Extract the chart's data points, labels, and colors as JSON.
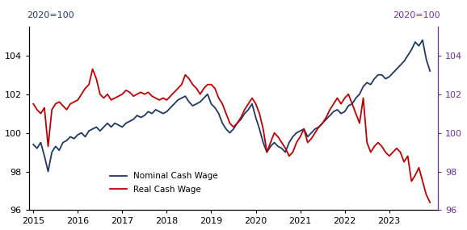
{
  "title_left": "2020=100",
  "title_right": "2020=100",
  "title_left_color": "#1f3864",
  "title_right_color": "#7030a0",
  "right_axis_color": "#7030a0",
  "ylim": [
    96,
    105.5
  ],
  "yticks": [
    96,
    98,
    100,
    102,
    104
  ],
  "xlabel_years": [
    2015,
    2016,
    2017,
    2018,
    2019,
    2020,
    2021,
    2022,
    2023
  ],
  "xlim": [
    2014.9,
    2024.1
  ],
  "nominal_color": "#1f3864",
  "real_color": "#c00000",
  "legend_nominal": "Nominal Cash Wage",
  "legend_real": "Real Cash Wage",
  "nominal_x": [
    2015.0,
    2015.083,
    2015.167,
    2015.25,
    2015.333,
    2015.417,
    2015.5,
    2015.583,
    2015.667,
    2015.75,
    2015.833,
    2015.917,
    2016.0,
    2016.083,
    2016.167,
    2016.25,
    2016.333,
    2016.417,
    2016.5,
    2016.583,
    2016.667,
    2016.75,
    2016.833,
    2016.917,
    2017.0,
    2017.083,
    2017.167,
    2017.25,
    2017.333,
    2017.417,
    2017.5,
    2017.583,
    2017.667,
    2017.75,
    2017.833,
    2017.917,
    2018.0,
    2018.083,
    2018.167,
    2018.25,
    2018.333,
    2018.417,
    2018.5,
    2018.583,
    2018.667,
    2018.75,
    2018.833,
    2018.917,
    2019.0,
    2019.083,
    2019.167,
    2019.25,
    2019.333,
    2019.417,
    2019.5,
    2019.583,
    2019.667,
    2019.75,
    2019.833,
    2019.917,
    2020.0,
    2020.083,
    2020.167,
    2020.25,
    2020.333,
    2020.417,
    2020.5,
    2020.583,
    2020.667,
    2020.75,
    2020.833,
    2020.917,
    2021.0,
    2021.083,
    2021.167,
    2021.25,
    2021.333,
    2021.417,
    2021.5,
    2021.583,
    2021.667,
    2021.75,
    2021.833,
    2021.917,
    2022.0,
    2022.083,
    2022.167,
    2022.25,
    2022.333,
    2022.417,
    2022.5,
    2022.583,
    2022.667,
    2022.75,
    2022.833,
    2022.917,
    2023.0,
    2023.083,
    2023.167,
    2023.25,
    2023.333,
    2023.417,
    2023.5,
    2023.583,
    2023.667,
    2023.75,
    2023.833,
    2023.917
  ],
  "nominal_y": [
    99.4,
    99.2,
    99.5,
    98.8,
    98.0,
    99.0,
    99.3,
    99.1,
    99.5,
    99.6,
    99.8,
    99.7,
    99.9,
    100.0,
    99.8,
    100.1,
    100.2,
    100.3,
    100.1,
    100.3,
    100.5,
    100.3,
    100.5,
    100.4,
    100.3,
    100.5,
    100.6,
    100.7,
    100.9,
    100.8,
    100.9,
    101.1,
    101.0,
    101.2,
    101.1,
    101.0,
    101.1,
    101.3,
    101.5,
    101.7,
    101.8,
    101.9,
    101.6,
    101.4,
    101.5,
    101.6,
    101.8,
    102.0,
    101.5,
    101.3,
    101.0,
    100.5,
    100.2,
    100.0,
    100.2,
    100.5,
    100.7,
    101.0,
    101.2,
    101.5,
    100.8,
    100.2,
    99.5,
    99.0,
    99.3,
    99.5,
    99.3,
    99.2,
    99.0,
    99.5,
    99.8,
    100.0,
    100.1,
    100.2,
    99.8,
    100.0,
    100.2,
    100.3,
    100.5,
    100.7,
    100.9,
    101.1,
    101.2,
    101.0,
    101.1,
    101.4,
    101.5,
    101.8,
    102.0,
    102.4,
    102.6,
    102.5,
    102.8,
    103.0,
    103.0,
    102.8,
    102.9,
    103.1,
    103.3,
    103.5,
    103.7,
    104.0,
    104.3,
    104.7,
    104.5,
    104.8,
    103.8,
    103.2
  ],
  "real_y": [
    101.5,
    101.2,
    101.0,
    101.3,
    99.3,
    101.2,
    101.5,
    101.6,
    101.4,
    101.2,
    101.5,
    101.6,
    101.7,
    102.0,
    102.3,
    102.5,
    103.3,
    102.8,
    102.0,
    101.8,
    102.0,
    101.7,
    101.8,
    101.9,
    102.0,
    102.2,
    102.1,
    101.9,
    102.0,
    102.1,
    102.0,
    102.1,
    101.9,
    101.8,
    101.7,
    101.8,
    101.7,
    101.9,
    102.1,
    102.3,
    102.5,
    103.0,
    102.8,
    102.5,
    102.3,
    102.0,
    102.3,
    102.5,
    102.5,
    102.3,
    101.8,
    101.5,
    101.0,
    100.5,
    100.3,
    100.5,
    100.8,
    101.2,
    101.5,
    101.8,
    101.5,
    101.0,
    100.2,
    99.0,
    99.5,
    100.0,
    99.8,
    99.5,
    99.2,
    98.8,
    99.0,
    99.5,
    99.8,
    100.2,
    99.5,
    99.7,
    100.0,
    100.3,
    100.5,
    100.8,
    101.2,
    101.5,
    101.8,
    101.5,
    101.8,
    102.0,
    101.5,
    101.0,
    100.5,
    101.8,
    99.5,
    99.0,
    99.3,
    99.5,
    99.3,
    99.0,
    98.8,
    99.0,
    99.2,
    99.0,
    98.5,
    98.8,
    97.5,
    97.8,
    98.2,
    97.5,
    96.8,
    96.4
  ]
}
